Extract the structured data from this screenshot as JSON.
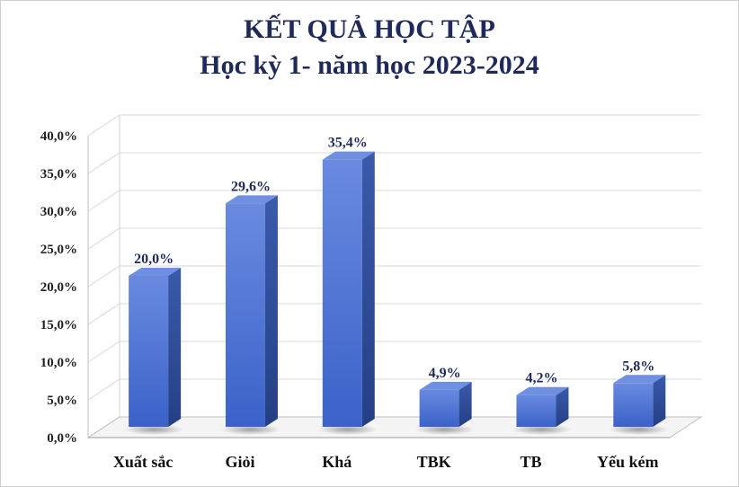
{
  "chart_data": {
    "type": "bar",
    "title": "KẾT QUẢ HỌC TẬP",
    "subtitle": "Học kỳ 1- năm học 2023-2024",
    "categories": [
      "Xuất sắc",
      "Giỏi",
      "Khá",
      "TBK",
      "TB",
      "Yếu kém"
    ],
    "values": [
      20.0,
      29.6,
      35.4,
      4.9,
      4.2,
      5.8
    ],
    "value_labels": [
      "20,0%",
      "29,6%",
      "35,4%",
      "4,9%",
      "4,2%",
      "5,8%"
    ],
    "y_ticks": [
      "0,0%",
      "5,0%",
      "10,0%",
      "15,0%",
      "20,0%",
      "25,0%",
      "30,0%",
      "35,0%",
      "40,0%"
    ],
    "ylim": [
      0,
      40
    ],
    "grid": true,
    "style": "3d-column",
    "colors": {
      "bar_top": "#6f8fe0",
      "bar_front": "#3f66cc",
      "bar_side": "#2c4f9e",
      "title": "#1f2a5a"
    }
  }
}
